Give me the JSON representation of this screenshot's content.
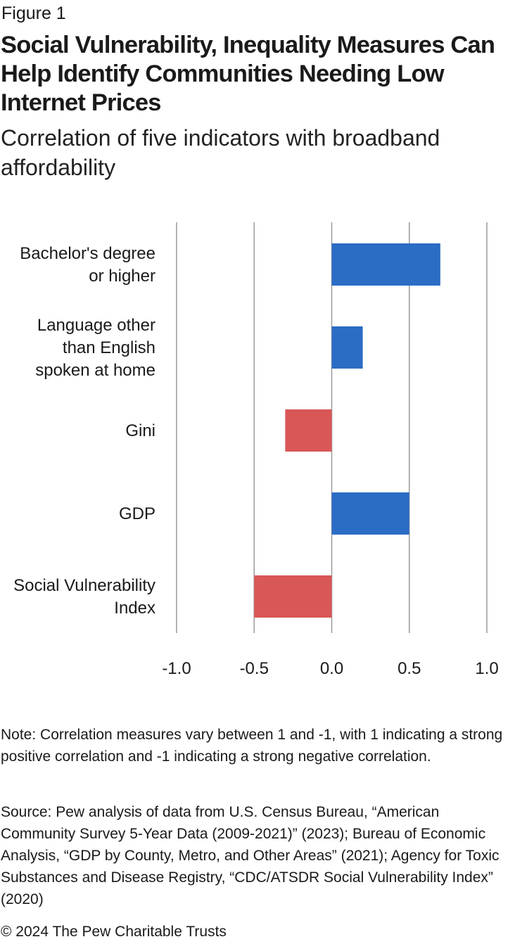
{
  "figure_label": "Figure 1",
  "title": "Social Vulnerability, Inequality Measures Can Help Identify Communities Needing Low Internet Prices",
  "subtitle": "Correlation of five indicators with broadband affordability",
  "colors": {
    "positive": "#2b6cc4",
    "negative": "#d95757",
    "gridline": "#9a9a9a"
  },
  "chart_data": {
    "type": "bar",
    "orientation": "horizontal",
    "categories": [
      [
        "Bachelor's degree",
        "or higher"
      ],
      [
        "Language other",
        "than English",
        "spoken at home"
      ],
      [
        "Gini"
      ],
      [
        "GDP"
      ],
      [
        "Social Vulnerability",
        "Index"
      ]
    ],
    "values": [
      0.7,
      0.2,
      -0.3,
      0.5,
      -0.5
    ],
    "xlim": [
      -1.0,
      1.0
    ],
    "xticks": [
      "-1.0",
      "-0.5",
      "0.0",
      "0.5",
      "1.0"
    ],
    "xtick_values": [
      -1.0,
      -0.5,
      0.0,
      0.5,
      1.0
    ],
    "xlabel": "",
    "ylabel": "",
    "grid": true
  },
  "note": "Note: Correlation measures vary between 1 and -1, with 1 indicating a strong positive correlation and -1 indicating a strong negative correlation.",
  "source": "Source: Pew analysis of data from U.S. Census Bureau, “American Community Survey 5-Year Data (2009-2021)” (2023); Bureau of Economic Analysis, “GDP by County, Metro, and Other Areas” (2021); Agency for Toxic Substances and Disease Registry, “CDC/ATSDR Social Vulnerability Index” (2020)",
  "copyright": "© 2024 The Pew Charitable Trusts"
}
